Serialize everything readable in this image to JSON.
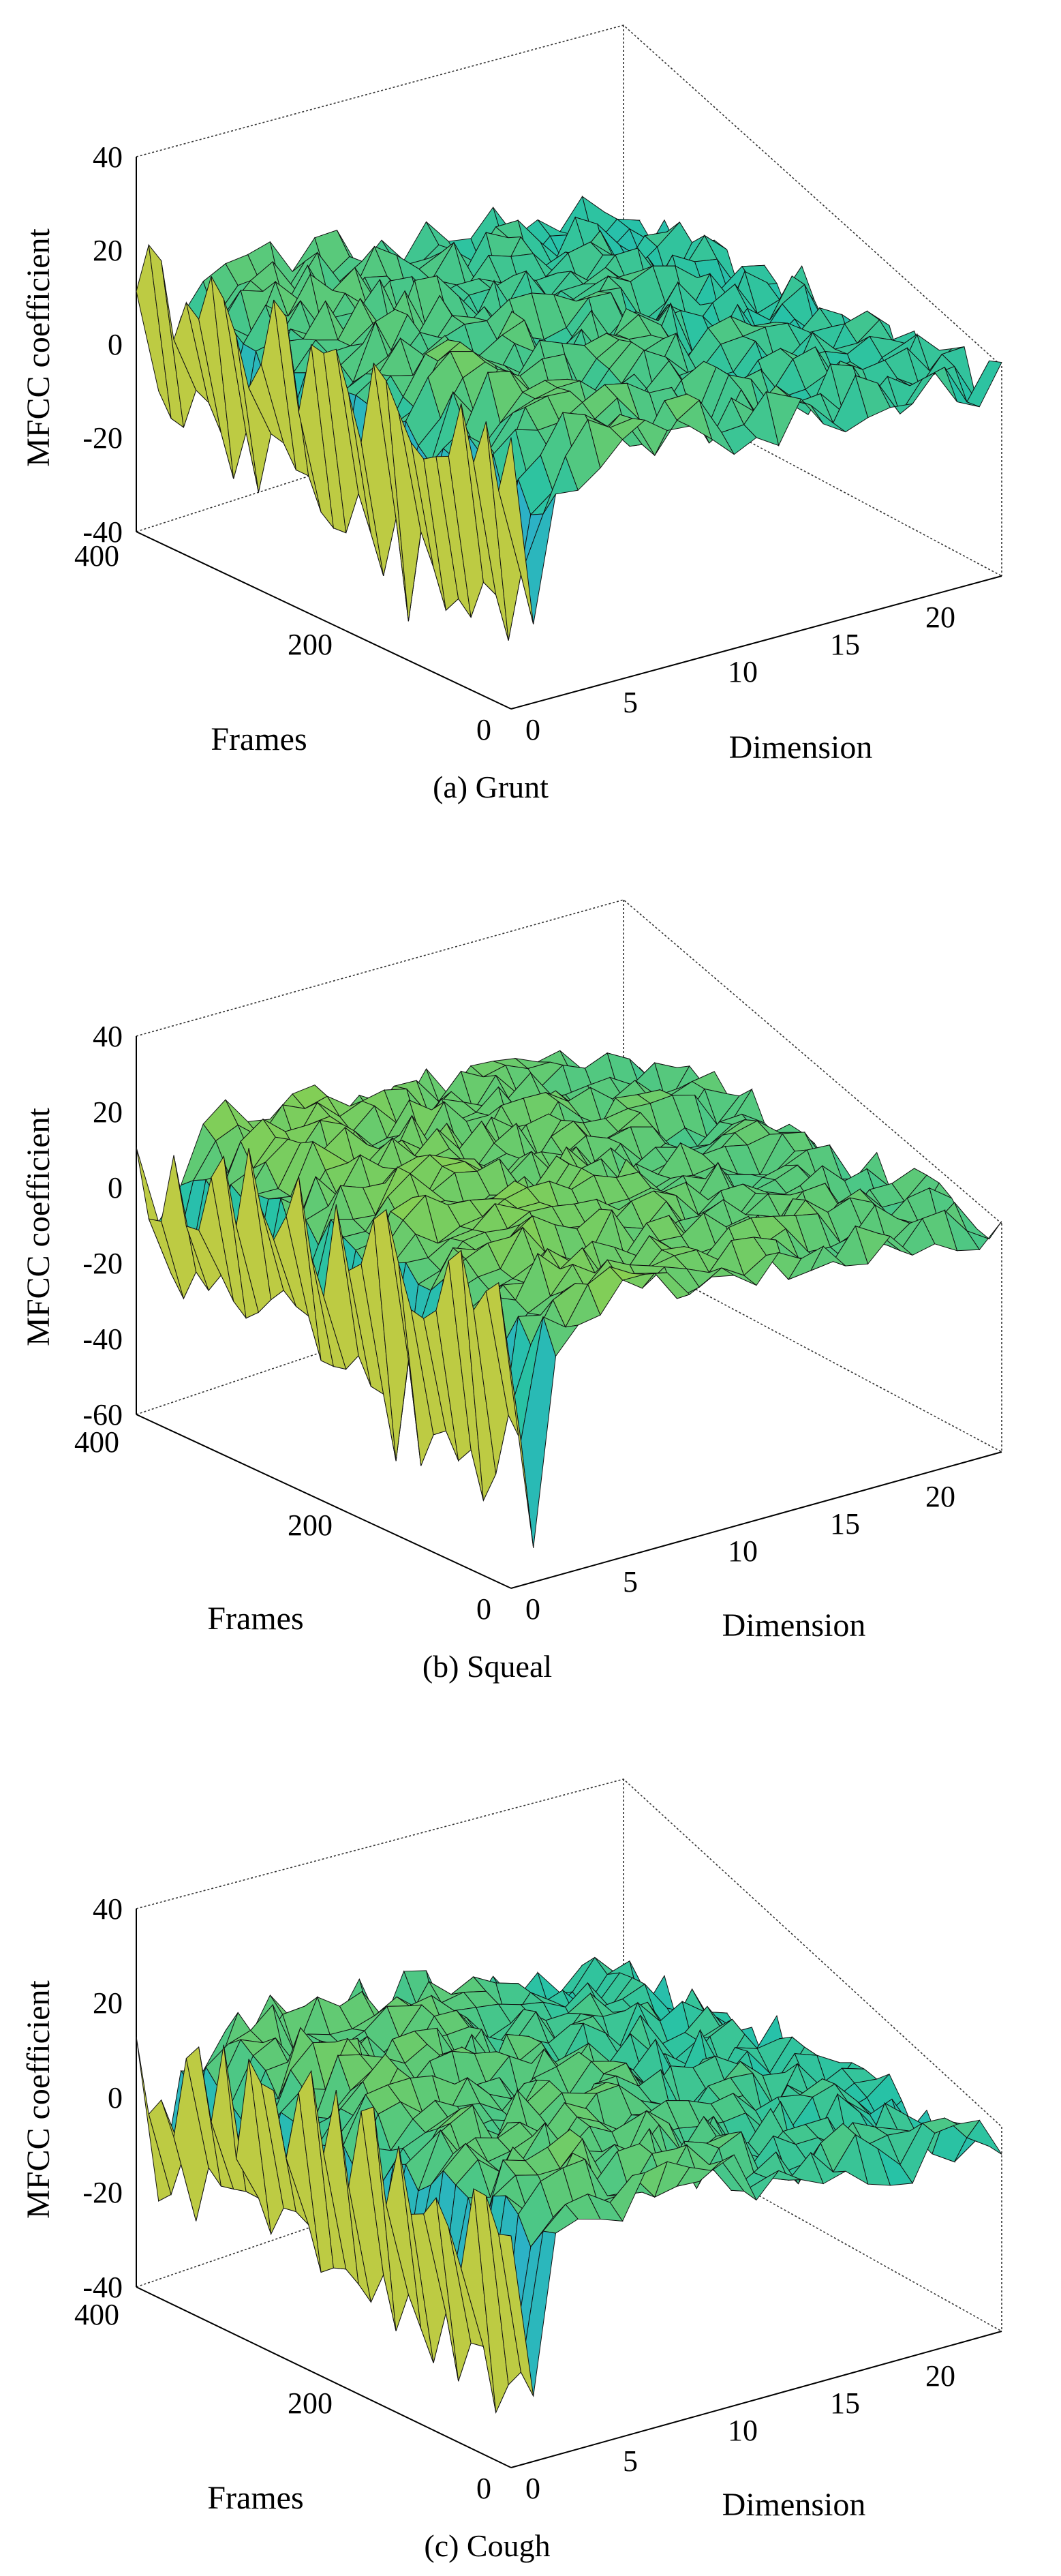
{
  "chart_data": [
    {
      "type": "surface",
      "caption": "(a) Grunt",
      "zlabel": "MFCC coefficient",
      "xlabel": "Dimension",
      "ylabel": "Frames",
      "zticks": [
        "40",
        "20",
        "0",
        "-20",
        "-40"
      ],
      "zticks_v": [
        40,
        20,
        0,
        -20,
        -40
      ],
      "zlim": [
        -40,
        40
      ],
      "xticks": [
        "0",
        "5",
        "10",
        "15",
        "20"
      ],
      "xticks_v": [
        0,
        5,
        10,
        15,
        20
      ],
      "xlim": [
        0,
        22
      ],
      "yticks": [
        "400",
        "200",
        "0"
      ],
      "yticks_v": [
        400,
        200,
        0
      ],
      "ylim": [
        0,
        400
      ],
      "first_dim_range": [
        -20,
        25
      ],
      "trough_min": -45,
      "plateau_level": 10,
      "tail_level": 0,
      "colormap": [
        "#3a3ee0",
        "#2fa8d8",
        "#27c2a6",
        "#8ed04c",
        "#e8c63a"
      ]
    },
    {
      "type": "surface",
      "caption": "(b) Squeal",
      "zlabel": "MFCC coefficient",
      "xlabel": "Dimension",
      "ylabel": "Frames",
      "zticks": [
        "40",
        "20",
        "0",
        "-20",
        "-40",
        "-60"
      ],
      "zticks_v": [
        40,
        20,
        0,
        -20,
        -40,
        -60
      ],
      "zlim": [
        -60,
        40
      ],
      "xticks": [
        "0",
        "5",
        "10",
        "15",
        "20"
      ],
      "xticks_v": [
        0,
        5,
        10,
        15,
        20
      ],
      "xlim": [
        0,
        22
      ],
      "yticks": [
        "400",
        "200",
        "0"
      ],
      "yticks_v": [
        400,
        200,
        0
      ],
      "ylim": [
        0,
        400
      ],
      "first_dim_range": [
        -35,
        25
      ],
      "trough_min": -60,
      "plateau_level": 10,
      "tail_level": 0,
      "colormap": [
        "#3a3ee0",
        "#2fa8d8",
        "#27c2a6",
        "#8ed04c",
        "#e8c63a"
      ]
    },
    {
      "type": "surface",
      "caption": "(c) Cough",
      "zlabel": "MFCC coefficient",
      "xlabel": "Dimension",
      "ylabel": "Frames",
      "zticks": [
        "40",
        "20",
        "0",
        "-20",
        "-40"
      ],
      "zticks_v": [
        40,
        20,
        0,
        -20,
        -40
      ],
      "zlim": [
        -40,
        40
      ],
      "xticks": [
        "0",
        "5",
        "10",
        "15",
        "20"
      ],
      "xticks_v": [
        0,
        5,
        10,
        15,
        20
      ],
      "xlim": [
        0,
        22
      ],
      "yticks": [
        "400",
        "200",
        "0"
      ],
      "yticks_v": [
        400,
        200,
        0
      ],
      "ylim": [
        0,
        400
      ],
      "first_dim_range": [
        -30,
        25
      ],
      "trough_min": -45,
      "plateau_level": 12,
      "tail_level": 0,
      "colormap": [
        "#3a3ee0",
        "#2fa8d8",
        "#27c2a6",
        "#8ed04c",
        "#e8c63a"
      ]
    }
  ]
}
